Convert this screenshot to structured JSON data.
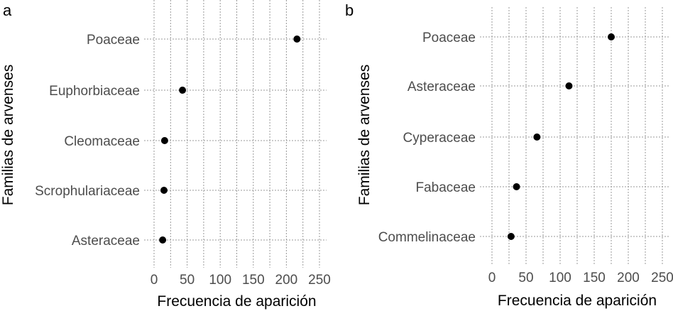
{
  "chart_data": [
    {
      "panel": "a",
      "type": "scatter",
      "categories": [
        "Poaceae",
        "Euphorbiaceae",
        "Cleomaceae",
        "Scrophulariaceae",
        "Asteraceae"
      ],
      "values": [
        216,
        43,
        16,
        15,
        13
      ],
      "xlabel": "Frecuencia de aparición",
      "ylabel": "Familias de arvenses",
      "xlim": [
        0,
        250
      ],
      "xticks": [
        "0",
        "50",
        "100",
        "150",
        "200",
        "250"
      ],
      "grid": true
    },
    {
      "panel": "b",
      "type": "scatter",
      "categories": [
        "Poaceae",
        "Asteraceae",
        "Cyperaceae",
        "Fabaceae",
        "Commelinaceae"
      ],
      "values": [
        175,
        113,
        66,
        36,
        28
      ],
      "xlabel": "Frecuencia de aparición",
      "ylabel": "Familias de arvenses",
      "xlim": [
        0,
        250
      ],
      "xticks": [
        "0",
        "50",
        "100",
        "150",
        "200",
        "250"
      ],
      "grid": true
    }
  ]
}
